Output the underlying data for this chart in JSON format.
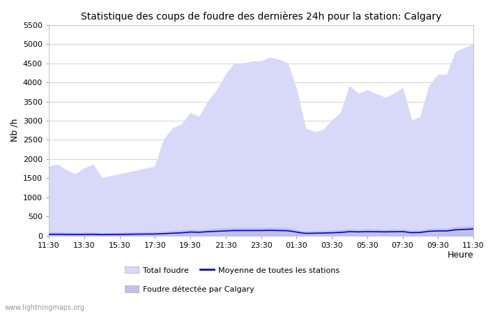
{
  "title": "Statistique des coups de foudre des dernières 24h pour la station: Calgary",
  "xlabel": "Heure",
  "ylabel": "Nb /h",
  "ylim": [
    0,
    5500
  ],
  "yticks": [
    0,
    500,
    1000,
    1500,
    2000,
    2500,
    3000,
    3500,
    4000,
    4500,
    5000,
    5500
  ],
  "xtick_labels": [
    "11:30",
    "13:30",
    "15:30",
    "17:30",
    "19:30",
    "21:30",
    "23:30",
    "01:30",
    "03:30",
    "05:30",
    "07:30",
    "09:30",
    "11:30"
  ],
  "color_total": "#d8d8f8",
  "color_calgary": "#c0c0f0",
  "color_mean": "#0000dd",
  "watermark": "www.lightningmaps.org",
  "legend_total": "Total foudre",
  "legend_mean": "Moyenne de toutes les stations",
  "legend_calgary": "Foudre détectée par Calgary",
  "total_values": [
    1800,
    1850,
    1700,
    1600,
    1750,
    1850,
    1500,
    1550,
    1600,
    1650,
    1700,
    1750,
    1800,
    2500,
    2800,
    2900,
    3200,
    3100,
    3500,
    3800,
    4200,
    4500,
    4500,
    4550,
    4550,
    4650,
    4600,
    4500,
    3800,
    2800,
    2700,
    2750,
    3000,
    3200,
    3900,
    3700,
    3800,
    3700,
    3600,
    3700,
    3850,
    3000,
    3100,
    3900,
    4200,
    4200,
    4800,
    4900,
    5000
  ],
  "calgary_values": [
    80,
    80,
    70,
    65,
    70,
    75,
    60,
    65,
    70,
    75,
    80,
    85,
    90,
    100,
    120,
    130,
    150,
    140,
    160,
    180,
    190,
    200,
    200,
    200,
    200,
    210,
    200,
    195,
    140,
    100,
    110,
    120,
    130,
    140,
    160,
    150,
    160,
    155,
    150,
    155,
    160,
    120,
    130,
    170,
    180,
    180,
    220,
    230,
    240
  ],
  "mean_values": [
    30,
    32,
    30,
    28,
    30,
    32,
    25,
    28,
    30,
    32,
    35,
    38,
    40,
    50,
    60,
    70,
    90,
    85,
    100,
    110,
    120,
    130,
    130,
    130,
    130,
    135,
    130,
    125,
    90,
    55,
    60,
    65,
    70,
    80,
    100,
    95,
    100,
    98,
    95,
    98,
    102,
    75,
    80,
    110,
    120,
    120,
    150,
    160,
    170
  ],
  "background_color": "#ffffff",
  "grid_color": "#cccccc"
}
